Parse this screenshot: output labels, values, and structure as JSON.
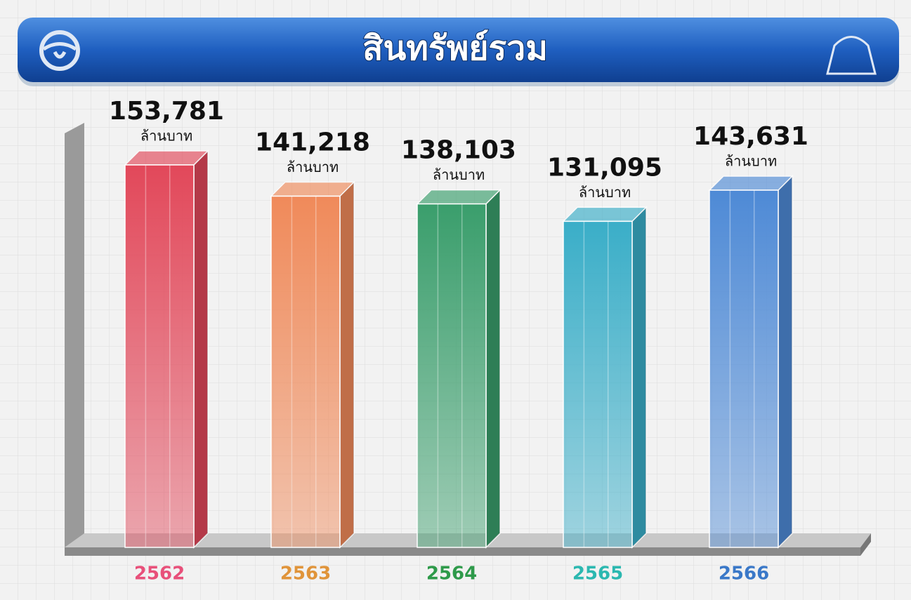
{
  "chart_data": {
    "type": "bar",
    "title": "สินทรัพย์รวม",
    "categories": [
      "2562",
      "2563",
      "2564",
      "2565",
      "2566"
    ],
    "values": [
      153781,
      141218,
      138103,
      131095,
      143631
    ],
    "value_labels": [
      "153,781",
      "141,218",
      "138,103",
      "131,095",
      "143,631"
    ],
    "unit": "ล้านบาท",
    "colors": [
      "#e2485a",
      "#f08a5a",
      "#3a9e6c",
      "#3aaec8",
      "#4e8ad6"
    ],
    "label_colors": [
      "#e8507a",
      "#e0943a",
      "#2e9a4a",
      "#2bb8b0",
      "#3a78c8"
    ]
  }
}
